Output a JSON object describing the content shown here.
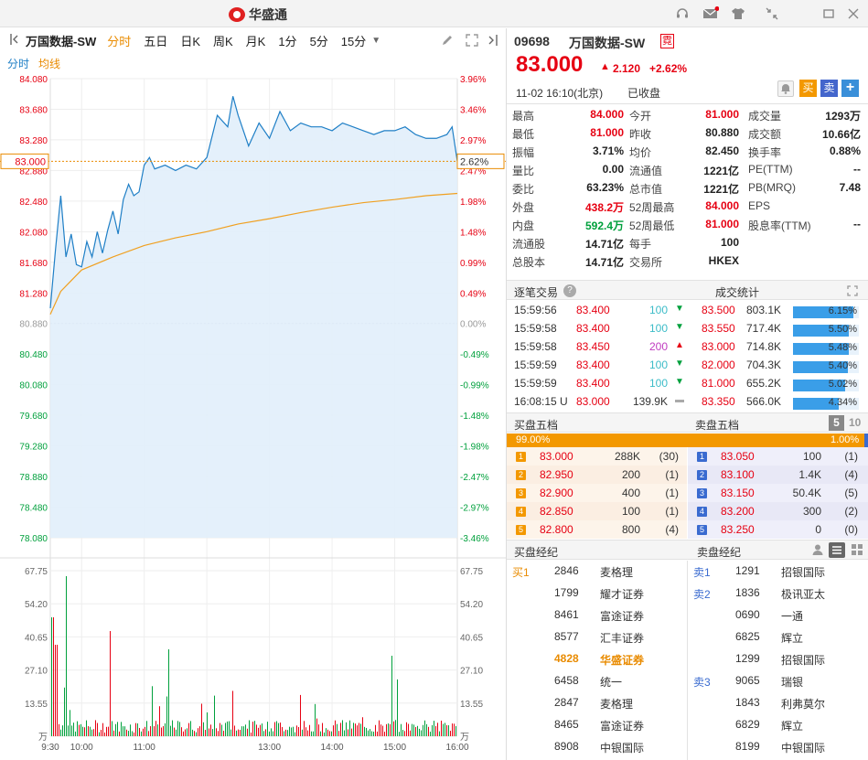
{
  "window": {
    "app_name": "华盛通",
    "icons": [
      "headset-icon",
      "mail-icon",
      "shirt-icon",
      "shrink-icon",
      "minimize-icon",
      "close-icon"
    ]
  },
  "toolbar": {
    "stock_name": "万国数据-SW",
    "periods": [
      "分时",
      "五日",
      "日K",
      "周K",
      "月K",
      "1分",
      "5分",
      "15分"
    ],
    "active_period": "分时"
  },
  "subtabs": {
    "intraday": "分时",
    "avg_line": "均线"
  },
  "chart_data": {
    "type": "line",
    "price_axis": [
      "84.080",
      "83.680",
      "83.280",
      "82.880",
      "82.480",
      "82.080",
      "81.680",
      "81.280",
      "80.880",
      "80.480",
      "80.080",
      "79.680",
      "79.280",
      "78.880",
      "78.480",
      "78.080"
    ],
    "pct_axis": [
      "3.96%",
      "3.46%",
      "2.97%",
      "2.47%",
      "1.98%",
      "1.48%",
      "0.99%",
      "0.49%",
      "0.00%",
      "-0.49%",
      "-0.99%",
      "-1.48%",
      "-1.98%",
      "-2.47%",
      "-2.97%",
      "-3.46%"
    ],
    "current_price_label": "83.000",
    "current_pct_label": "2.62%",
    "prev_close": 80.88,
    "ylim": [
      78.08,
      84.08
    ],
    "volume_axis": [
      "67.75",
      "54.20",
      "40.65",
      "27.10",
      "13.55",
      "万"
    ],
    "time_axis": [
      "9:30",
      "10:00",
      "11:00",
      "13:00",
      "14:00",
      "15:00",
      "16:00"
    ],
    "price_series": [
      [
        "09:30",
        81.08
      ],
      [
        "09:35",
        81.85
      ],
      [
        "09:40",
        82.55
      ],
      [
        "09:45",
        81.75
      ],
      [
        "09:50",
        82.05
      ],
      [
        "09:55",
        81.65
      ],
      [
        "10:00",
        81.62
      ],
      [
        "10:05",
        81.95
      ],
      [
        "10:10",
        81.75
      ],
      [
        "10:15",
        82.08
      ],
      [
        "10:20",
        81.8
      ],
      [
        "10:25",
        82.1
      ],
      [
        "10:30",
        82.35
      ],
      [
        "10:35",
        82.05
      ],
      [
        "10:40",
        82.5
      ],
      [
        "10:45",
        82.7
      ],
      [
        "10:50",
        82.55
      ],
      [
        "10:55",
        82.6
      ],
      [
        "11:00",
        82.95
      ],
      [
        "11:05",
        83.05
      ],
      [
        "11:10",
        82.9
      ],
      [
        "11:20",
        82.95
      ],
      [
        "11:30",
        82.88
      ],
      [
        "11:40",
        82.95
      ],
      [
        "11:50",
        82.9
      ],
      [
        "12:00",
        83.05
      ],
      [
        "12:10",
        83.6
      ],
      [
        "12:20",
        83.45
      ],
      [
        "12:25",
        83.85
      ],
      [
        "12:30",
        83.6
      ],
      [
        "12:40",
        83.2
      ],
      [
        "12:50",
        83.5
      ],
      [
        "13:00",
        83.3
      ],
      [
        "13:10",
        83.65
      ],
      [
        "13:20",
        83.4
      ],
      [
        "13:30",
        83.5
      ],
      [
        "13:40",
        83.45
      ],
      [
        "13:50",
        83.45
      ],
      [
        "14:00",
        83.4
      ],
      [
        "14:10",
        83.5
      ],
      [
        "14:20",
        83.45
      ],
      [
        "14:30",
        83.4
      ],
      [
        "14:40",
        83.35
      ],
      [
        "14:50",
        83.4
      ],
      [
        "15:00",
        83.4
      ],
      [
        "15:10",
        83.45
      ],
      [
        "15:20",
        83.35
      ],
      [
        "15:30",
        83.3
      ],
      [
        "15:40",
        83.3
      ],
      [
        "15:50",
        83.35
      ],
      [
        "15:55",
        83.45
      ],
      [
        "16:00",
        83.0
      ]
    ],
    "avg_series": [
      [
        "09:30",
        81.0
      ],
      [
        "09:40",
        81.3
      ],
      [
        "10:00",
        81.58
      ],
      [
        "10:30",
        81.75
      ],
      [
        "11:00",
        81.9
      ],
      [
        "11:30",
        82.0
      ],
      [
        "12:00",
        82.08
      ],
      [
        "12:30",
        82.18
      ],
      [
        "13:00",
        82.25
      ],
      [
        "13:30",
        82.33
      ],
      [
        "14:00",
        82.4
      ],
      [
        "14:30",
        82.46
      ],
      [
        "15:00",
        82.5
      ],
      [
        "15:30",
        82.55
      ],
      [
        "16:00",
        82.58
      ]
    ]
  },
  "quote": {
    "code": "09698",
    "name": "万国数据-SW",
    "tag": "霓",
    "price": "83.000",
    "change": "2.120",
    "change_pct": "+2.62%",
    "time": "11-02  16:10(北京)",
    "status": "已收盘",
    "buy_label": "买",
    "sell_label": "卖",
    "plus_label": "+"
  },
  "stats": [
    [
      {
        "k": "最高",
        "v": "84.000",
        "c": "r"
      },
      {
        "k": "今开",
        "v": "81.000",
        "c": "r"
      },
      {
        "k": "成交量",
        "v": "1293万",
        "c": "b"
      }
    ],
    [
      {
        "k": "最低",
        "v": "81.000",
        "c": "r"
      },
      {
        "k": "昨收",
        "v": "80.880",
        "c": "b"
      },
      {
        "k": "成交额",
        "v": "10.66亿",
        "c": "b"
      }
    ],
    [
      {
        "k": "振幅",
        "v": "3.71%",
        "c": "b"
      },
      {
        "k": "均价",
        "v": "82.450",
        "c": "b"
      },
      {
        "k": "换手率",
        "v": "0.88%",
        "c": "b"
      }
    ],
    [
      {
        "k": "量比",
        "v": "0.00",
        "c": "b"
      },
      {
        "k": "流通值",
        "v": "1221亿",
        "c": "b"
      },
      {
        "k": "PE(TTM)",
        "v": "--",
        "c": "b"
      }
    ],
    [
      {
        "k": "委比",
        "v": "63.23%",
        "c": "b"
      },
      {
        "k": "总市值",
        "v": "1221亿",
        "c": "b"
      },
      {
        "k": "PB(MRQ)",
        "v": "7.48",
        "c": "b"
      }
    ],
    [
      {
        "k": "外盘",
        "v": "438.2万",
        "c": "r"
      },
      {
        "k": "52周最高",
        "v": "84.000",
        "c": "r"
      },
      {
        "k": "EPS",
        "v": "",
        "c": "b"
      }
    ],
    [
      {
        "k": "内盘",
        "v": "592.4万",
        "c": "g"
      },
      {
        "k": "52周最低",
        "v": "81.000",
        "c": "r"
      },
      {
        "k": "股息率(TTM)",
        "v": "--",
        "c": "b"
      }
    ],
    [
      {
        "k": "流通股",
        "v": "14.71亿",
        "c": "b"
      },
      {
        "k": "每手",
        "v": "100",
        "c": "b"
      },
      {
        "k": "",
        "v": "",
        "c": "b"
      }
    ],
    [
      {
        "k": "总股本",
        "v": "14.71亿",
        "c": "b"
      },
      {
        "k": "交易所",
        "v": "HKEX",
        "c": "b"
      },
      {
        "k": "",
        "v": "",
        "c": "b"
      }
    ]
  ],
  "trades_head": {
    "title": "逐笔交易",
    "help": "?",
    "stats_title": "成交统计"
  },
  "trades": [
    {
      "time": "15:59:56",
      "price": "83.400",
      "vol": "100",
      "dir": "down"
    },
    {
      "time": "15:59:58",
      "price": "83.400",
      "vol": "100",
      "dir": "down"
    },
    {
      "time": "15:59:58",
      "price": "83.450",
      "vol": "200",
      "dir": "up"
    },
    {
      "time": "15:59:59",
      "price": "83.400",
      "vol": "100",
      "dir": "down"
    },
    {
      "time": "15:59:59",
      "price": "83.400",
      "vol": "100",
      "dir": "down"
    },
    {
      "time": "16:08:15 U",
      "price": "83.000",
      "vol": "139.9K",
      "dir": "flat"
    }
  ],
  "volume_stats": [
    {
      "price": "83.500",
      "vol": "803.1K",
      "pct": "6.15%",
      "frac": 0.92
    },
    {
      "price": "83.550",
      "vol": "717.4K",
      "pct": "5.50%",
      "frac": 0.85
    },
    {
      "price": "83.000",
      "vol": "714.8K",
      "pct": "5.48%",
      "frac": 0.85
    },
    {
      "price": "82.000",
      "vol": "704.3K",
      "pct": "5.40%",
      "frac": 0.84
    },
    {
      "price": "81.000",
      "vol": "655.2K",
      "pct": "5.02%",
      "frac": 0.79
    },
    {
      "price": "83.350",
      "vol": "566.0K",
      "pct": "4.34%",
      "frac": 0.69
    }
  ],
  "orderbook": {
    "bid_title": "买盘五档",
    "ask_title": "卖盘五档",
    "depth_5": "5",
    "depth_10": "10",
    "bid_pct": "99.00%",
    "ask_pct": "1.00%",
    "bid_frac": 0.99,
    "bids": [
      {
        "lvl": "1",
        "price": "83.000",
        "vol": "288K",
        "n": "(30)"
      },
      {
        "lvl": "2",
        "price": "82.950",
        "vol": "200",
        "n": "(1)"
      },
      {
        "lvl": "3",
        "price": "82.900",
        "vol": "400",
        "n": "(1)"
      },
      {
        "lvl": "4",
        "price": "82.850",
        "vol": "100",
        "n": "(1)"
      },
      {
        "lvl": "5",
        "price": "82.800",
        "vol": "800",
        "n": "(4)"
      }
    ],
    "asks": [
      {
        "lvl": "1",
        "price": "83.050",
        "vol": "100",
        "n": "(1)"
      },
      {
        "lvl": "2",
        "price": "83.100",
        "vol": "1.4K",
        "n": "(4)"
      },
      {
        "lvl": "3",
        "price": "83.150",
        "vol": "50.4K",
        "n": "(5)"
      },
      {
        "lvl": "4",
        "price": "83.200",
        "vol": "300",
        "n": "(2)"
      },
      {
        "lvl": "5",
        "price": "83.250",
        "vol": "0",
        "n": "(0)"
      }
    ]
  },
  "brokers": {
    "bid_title": "买盘经纪",
    "ask_title": "卖盘经纪",
    "bids": [
      {
        "tag": "买1",
        "id": "2846",
        "name": "麦格理",
        "hl": false
      },
      {
        "tag": "",
        "id": "1799",
        "name": "耀才证券",
        "hl": false
      },
      {
        "tag": "",
        "id": "8461",
        "name": "富途证券",
        "hl": false
      },
      {
        "tag": "",
        "id": "8577",
        "name": "汇丰证券",
        "hl": false
      },
      {
        "tag": "",
        "id": "4828",
        "name": "华盛证券",
        "hl": true
      },
      {
        "tag": "",
        "id": "6458",
        "name": "统一",
        "hl": false
      },
      {
        "tag": "",
        "id": "2847",
        "name": "麦格理",
        "hl": false
      },
      {
        "tag": "",
        "id": "8465",
        "name": "富途证券",
        "hl": false
      },
      {
        "tag": "",
        "id": "8908",
        "name": "中银国际",
        "hl": false
      }
    ],
    "asks": [
      {
        "tag": "卖1",
        "id": "1291",
        "name": "招银国际"
      },
      {
        "tag": "卖2",
        "id": "1836",
        "name": "极讯亚太"
      },
      {
        "tag": "",
        "id": "0690",
        "name": "一通"
      },
      {
        "tag": "",
        "id": "6825",
        "name": "辉立"
      },
      {
        "tag": "",
        "id": "1299",
        "name": "招银国际"
      },
      {
        "tag": "卖3",
        "id": "9065",
        "name": "瑞银"
      },
      {
        "tag": "",
        "id": "1843",
        "name": "利弗莫尔"
      },
      {
        "tag": "",
        "id": "6829",
        "name": "辉立"
      },
      {
        "tag": "",
        "id": "8199",
        "name": "中银国际"
      }
    ]
  },
  "colors": {
    "up": "#e60012",
    "down": "#00a03c",
    "accent": "#e98b00",
    "line": "#1f7fc6",
    "avg": "#f0a020"
  }
}
